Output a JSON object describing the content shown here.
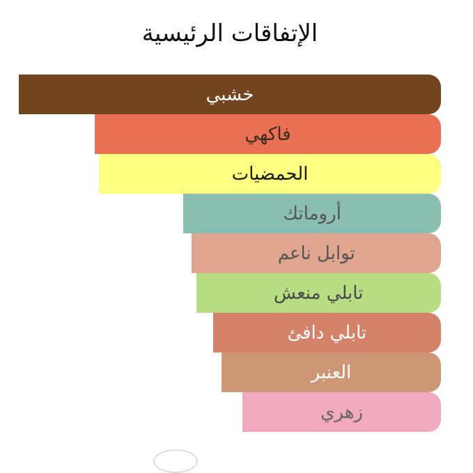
{
  "chart_data": {
    "type": "bar",
    "orientation": "horizontal",
    "title": "الإتفاقات الرئيسية",
    "categories": [
      "خشبي",
      "فاكهي",
      "الحمضيات",
      "أروماتك",
      "توابل ناعم",
      "تابلي منعش",
      "تابلي دافئ",
      "العنبر",
      "زهري"
    ],
    "values": [
      100,
      82,
      81,
      61,
      59,
      58,
      54,
      52,
      47
    ],
    "xlim": [
      0,
      100
    ],
    "grid": false,
    "colors": [
      "#72451f",
      "#e97053",
      "#fcff80",
      "#8abeb0",
      "#e0a58f",
      "#b8dc82",
      "#d4826a",
      "#cd9675",
      "#f0a9bf"
    ],
    "label_colors": [
      "#ffffff",
      "#3a2a20",
      "#1a1a10",
      "#555555",
      "#555555",
      "#4a4a4a",
      "#ffffff",
      "#ffffff",
      "#666666"
    ]
  }
}
